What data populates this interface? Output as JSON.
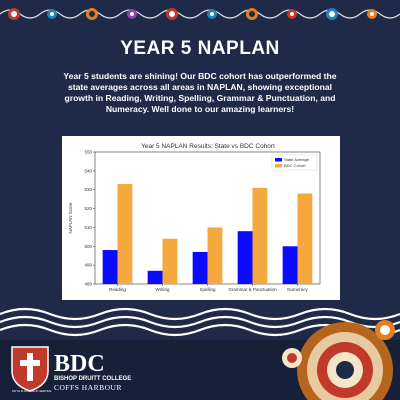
{
  "header": {
    "title": "YEAR 5 NAPLAN",
    "description": "Year 5 students are shining! Our BDC cohort has outperformed the state averages across all areas in NAPLAN, showing exceptional growth in Reading, Writing, Spelling, Grammar & Punctuation, and Numeracy. Well done to our amazing learners!"
  },
  "colors": {
    "background": "#1e2a47",
    "state": "#0b0bff",
    "bdc": "#f5a83d",
    "footer": "#162038"
  },
  "chart_data": {
    "type": "bar",
    "title": "Year 5 NAPLAN Results: State vs BDC Cohort",
    "ylabel": "NAPLAN Score",
    "xlabel": "",
    "categories": [
      "Reading",
      "Writing",
      "Spelling",
      "Grammar & Punctuation",
      "Numeracy"
    ],
    "series": [
      {
        "name": "State Average",
        "values": [
          498,
          487,
          497,
          508,
          500
        ]
      },
      {
        "name": "BDC Cohort",
        "values": [
          533,
          504,
          510,
          531,
          528
        ]
      }
    ],
    "ylim": [
      480,
      550
    ],
    "yticks": [
      "480",
      "490",
      "500",
      "510",
      "520",
      "530",
      "540",
      "550"
    ],
    "legend": "top-right",
    "grid": false
  },
  "logo": {
    "name": "BDC",
    "school": "BISHOP DRUITT COLLEGE",
    "campus": "COFFS HARBOUR",
    "motto": "FAITH FLOURISH IN SERVICE"
  }
}
